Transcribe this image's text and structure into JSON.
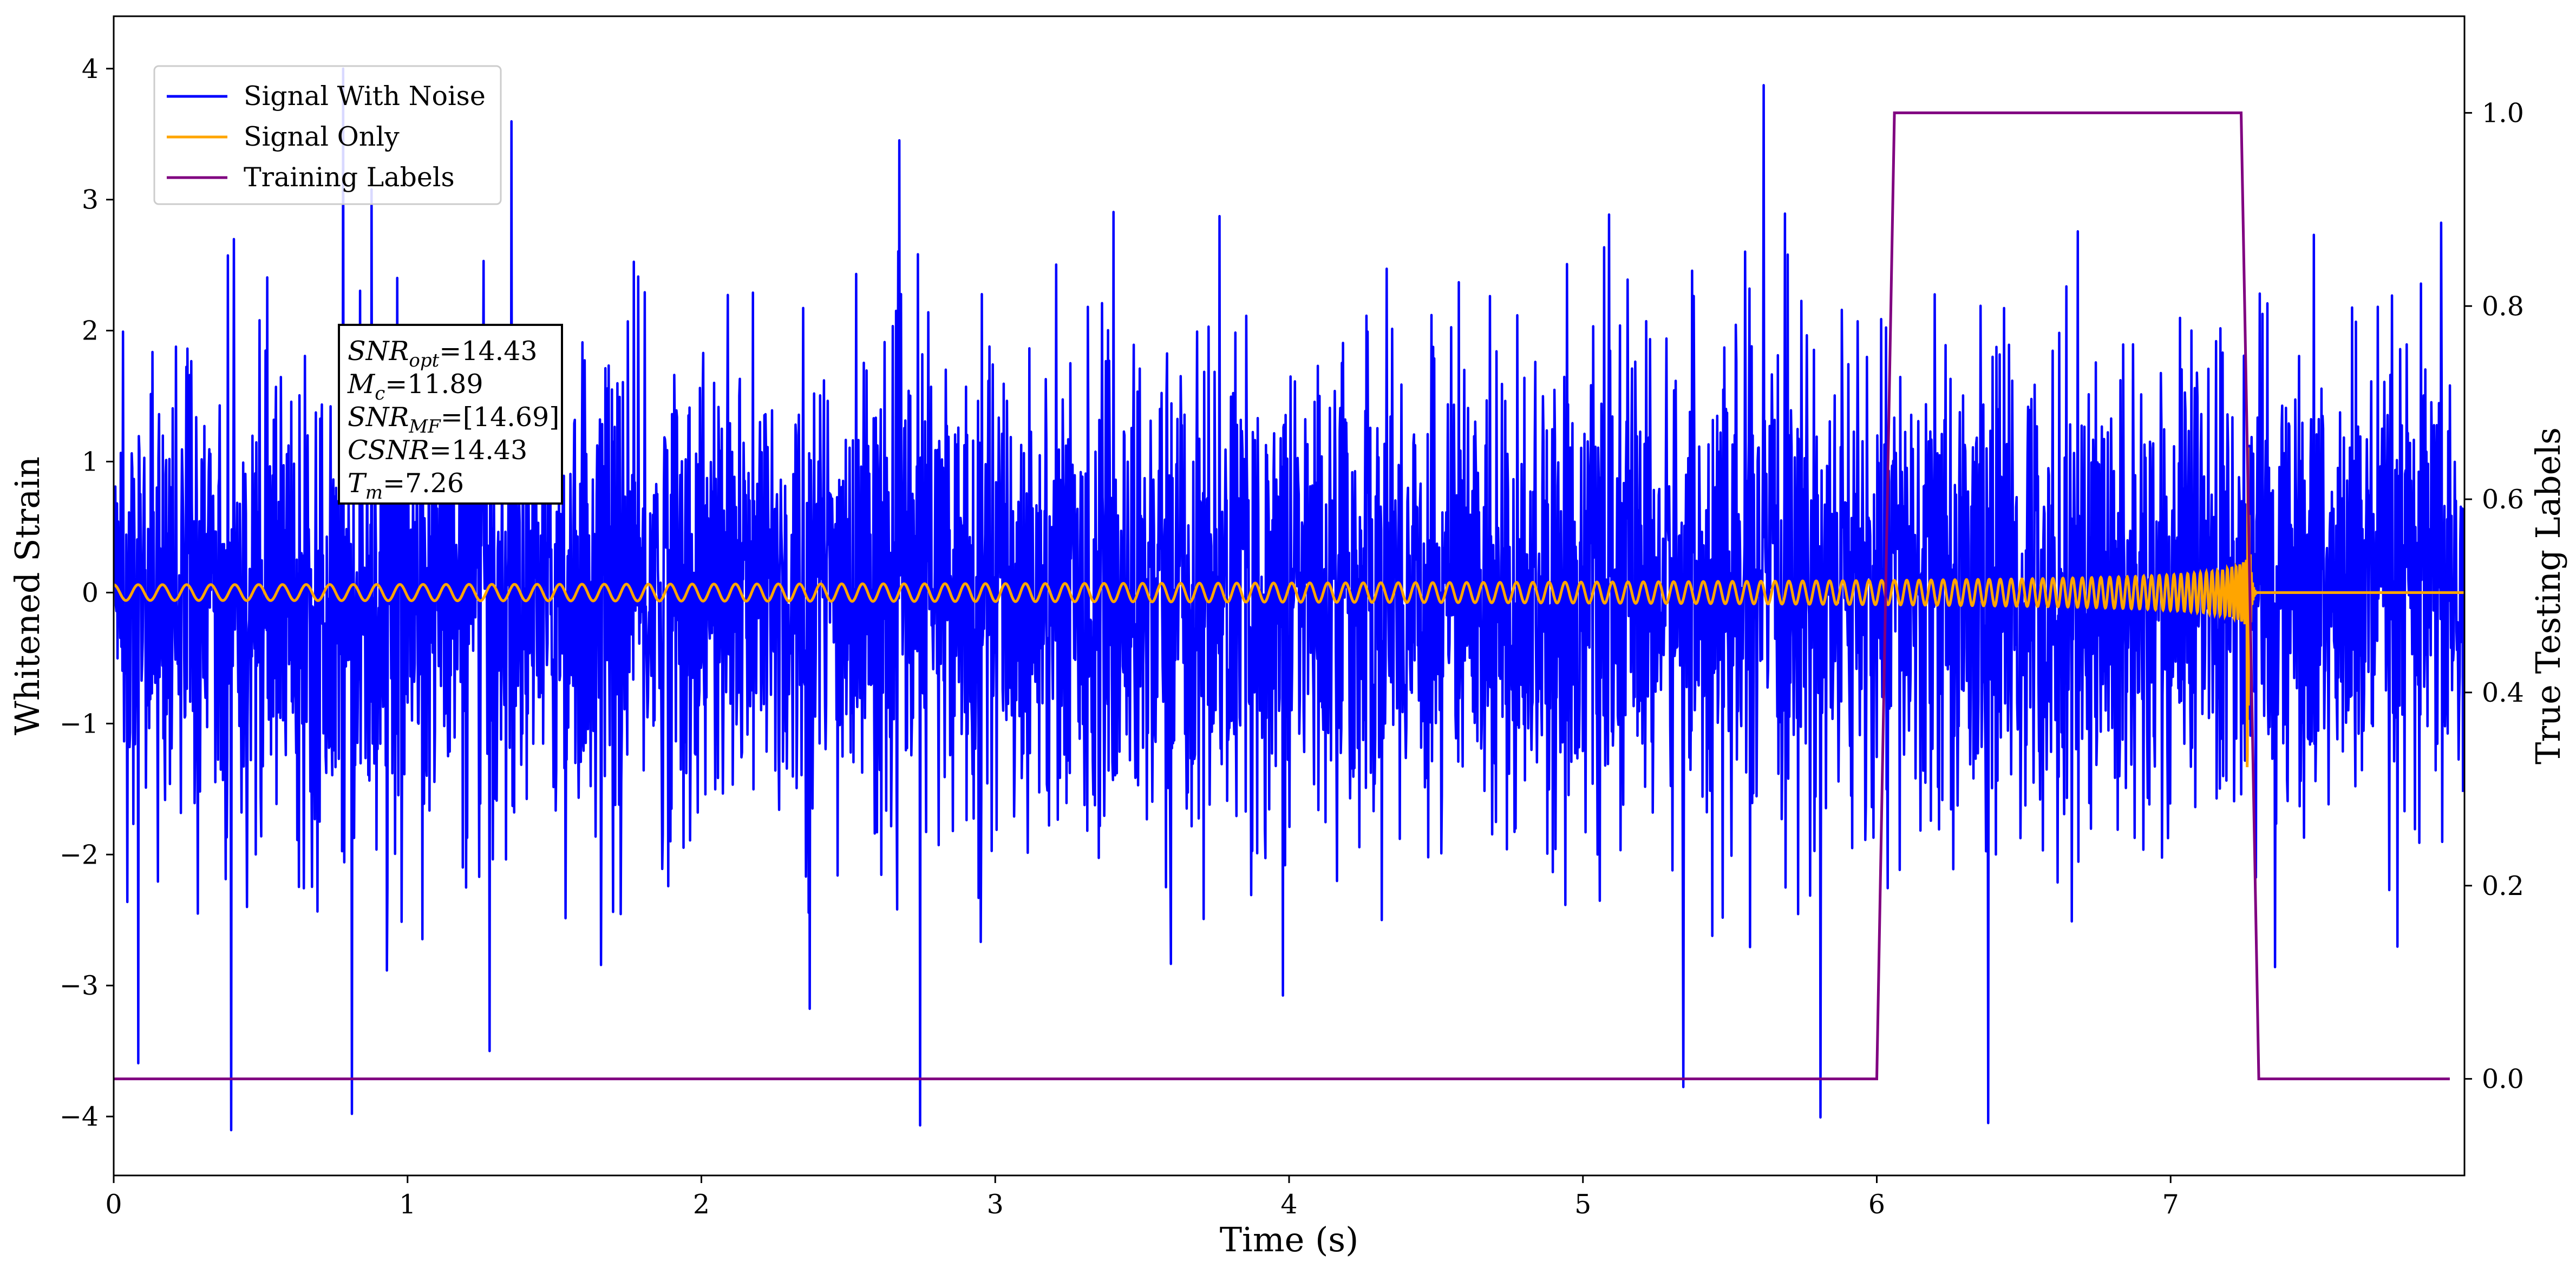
{
  "chart_data": {
    "type": "line",
    "title": "",
    "xlabel": "Time (s)",
    "ylabel": "Whitened Strain",
    "y2label": "True Testing Labels",
    "xlim": [
      0,
      8.0
    ],
    "ylim": [
      -4.45,
      4.4
    ],
    "y2lim": [
      -0.1,
      1.1
    ],
    "xticks": [
      "0",
      "1",
      "2",
      "3",
      "4",
      "5",
      "6",
      "7"
    ],
    "yticks": [
      "−4",
      "−3",
      "−2",
      "−1",
      "0",
      "1",
      "2",
      "3",
      "4"
    ],
    "y2ticks": [
      "0.0",
      "0.2",
      "0.4",
      "0.6",
      "0.8",
      "1.0"
    ],
    "legend_position": "top-left",
    "grid": false,
    "series": [
      {
        "name": "Signal With Noise",
        "color": "#0000ff",
        "axis": "left",
        "description_points": {
          "x_range": [
            0,
            8.0
          ],
          "typical_amplitude": 1.3,
          "notable_extremes": [
            {
              "x": 0.78,
              "y": 4.0
            },
            {
              "x": 0.81,
              "y": -3.98
            },
            {
              "x": 6.38,
              "y": -4.05
            },
            {
              "x": 1.28,
              "y": -3.5
            }
          ]
        }
      },
      {
        "name": "Signal Only",
        "color": "#ffa500",
        "axis": "left",
        "chirp": {
          "start_time": 0,
          "merger_time": 7.26,
          "ringdown_end": 7.29,
          "initial_amplitude": 0.06,
          "peak_amplitude": 1.95,
          "end_time": 8.0
        }
      },
      {
        "name": "Training Labels",
        "color": "#800080",
        "axis": "right",
        "x": [
          0,
          6.0,
          6.06,
          7.24,
          7.3,
          7.95
        ],
        "y": [
          0,
          0,
          1,
          1,
          0,
          0
        ]
      }
    ],
    "annotation": {
      "position": "upper-left",
      "lines": [
        {
          "sym": "SNR",
          "sub": "opt",
          "text": "=14.43"
        },
        {
          "sym": "M",
          "sub": "c",
          "text": "=11.89"
        },
        {
          "sym": "SNR",
          "sub": "MF",
          "text": "=[14.69]"
        },
        {
          "sym": "CSNR",
          "sub": "",
          "text": "=14.43"
        },
        {
          "sym": "T",
          "sub": "m",
          "text": "=7.26"
        }
      ]
    }
  }
}
